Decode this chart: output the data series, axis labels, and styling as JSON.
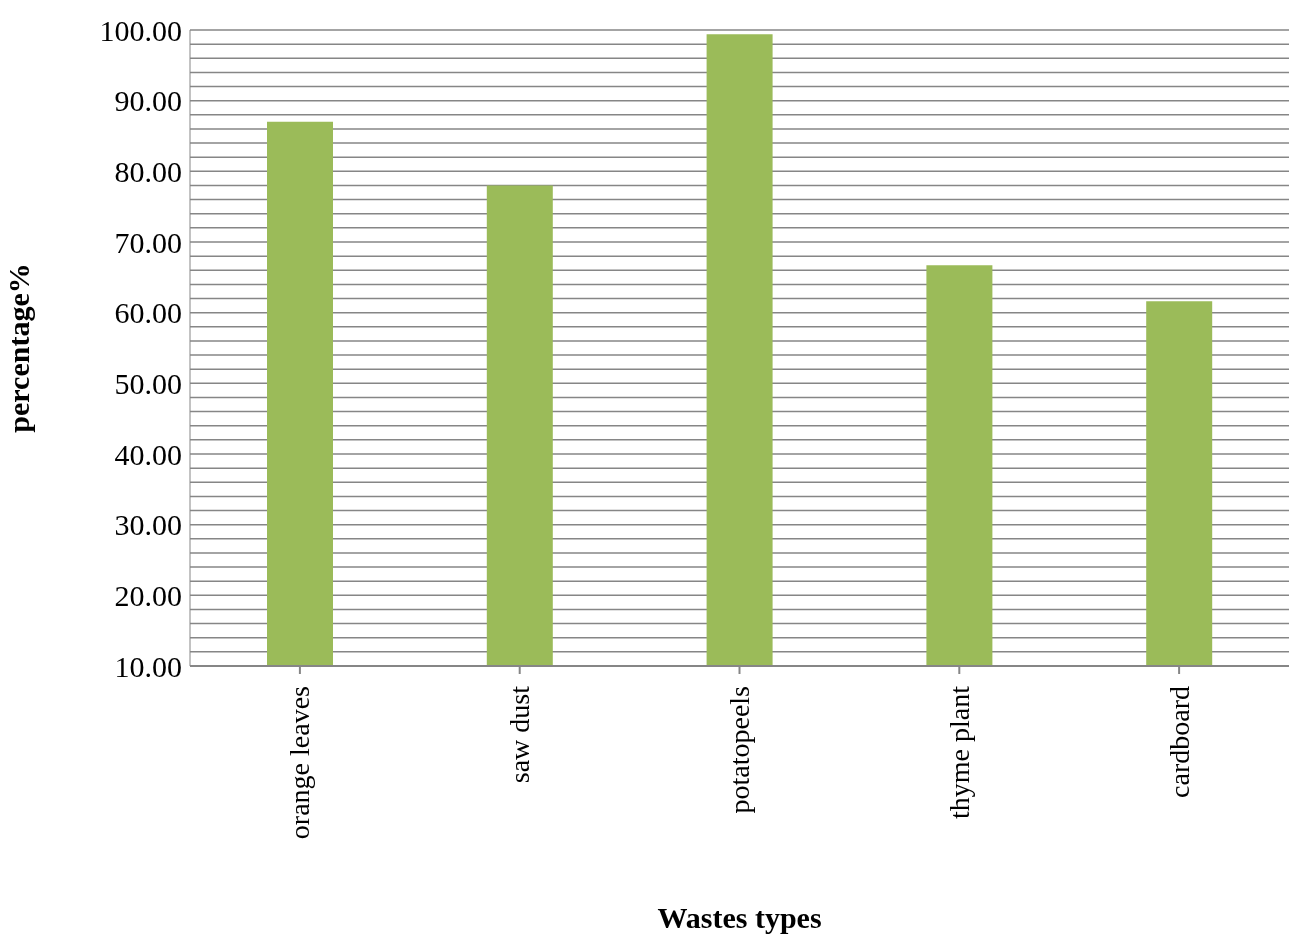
{
  "chart_data": {
    "type": "bar",
    "xlabel": "Wastes types",
    "ylabel": "percentage%",
    "categories": [
      "orange leaves",
      "saw dust",
      "potatopeels",
      "thyme plant",
      "cardboard"
    ],
    "values": [
      87,
      78,
      99.4,
      66.7,
      61.6
    ],
    "color": "#9bbb59",
    "ylim": [
      10,
      100
    ],
    "yticks": [
      {
        "value": 10,
        "label": "10.00"
      },
      {
        "value": 12,
        "label": null
      },
      {
        "value": 14,
        "label": null
      },
      {
        "value": 16,
        "label": null
      },
      {
        "value": 18,
        "label": null
      },
      {
        "value": 20,
        "label": "20.00"
      },
      {
        "value": 22,
        "label": null
      },
      {
        "value": 24,
        "label": null
      },
      {
        "value": 26,
        "label": null
      },
      {
        "value": 28,
        "label": null
      },
      {
        "value": 30,
        "label": "30.00"
      },
      {
        "value": 32,
        "label": null
      },
      {
        "value": 34,
        "label": null
      },
      {
        "value": 36,
        "label": null
      },
      {
        "value": 38,
        "label": null
      },
      {
        "value": 40,
        "label": "40.00"
      },
      {
        "value": 42,
        "label": null
      },
      {
        "value": 44,
        "label": null
      },
      {
        "value": 46,
        "label": null
      },
      {
        "value": 48,
        "label": null
      },
      {
        "value": 50,
        "label": "50.00"
      },
      {
        "value": 52,
        "label": null
      },
      {
        "value": 54,
        "label": null
      },
      {
        "value": 56,
        "label": null
      },
      {
        "value": 58,
        "label": null
      },
      {
        "value": 60,
        "label": "60.00"
      },
      {
        "value": 62,
        "label": null
      },
      {
        "value": 64,
        "label": null
      },
      {
        "value": 66,
        "label": null
      },
      {
        "value": 68,
        "label": null
      },
      {
        "value": 70,
        "label": "70.00"
      },
      {
        "value": 72,
        "label": null
      },
      {
        "value": 74,
        "label": null
      },
      {
        "value": 76,
        "label": null
      },
      {
        "value": 78,
        "label": null
      },
      {
        "value": 80,
        "label": "80.00"
      },
      {
        "value": 82,
        "label": null
      },
      {
        "value": 84,
        "label": null
      },
      {
        "value": 86,
        "label": null
      },
      {
        "value": 88,
        "label": null
      },
      {
        "value": 90,
        "label": "90.00"
      },
      {
        "value": 92,
        "label": null
      },
      {
        "value": 94,
        "label": null
      },
      {
        "value": 96,
        "label": null
      },
      {
        "value": 98,
        "label": null
      },
      {
        "value": 100,
        "label": "100.00"
      }
    ],
    "grid": "y"
  }
}
